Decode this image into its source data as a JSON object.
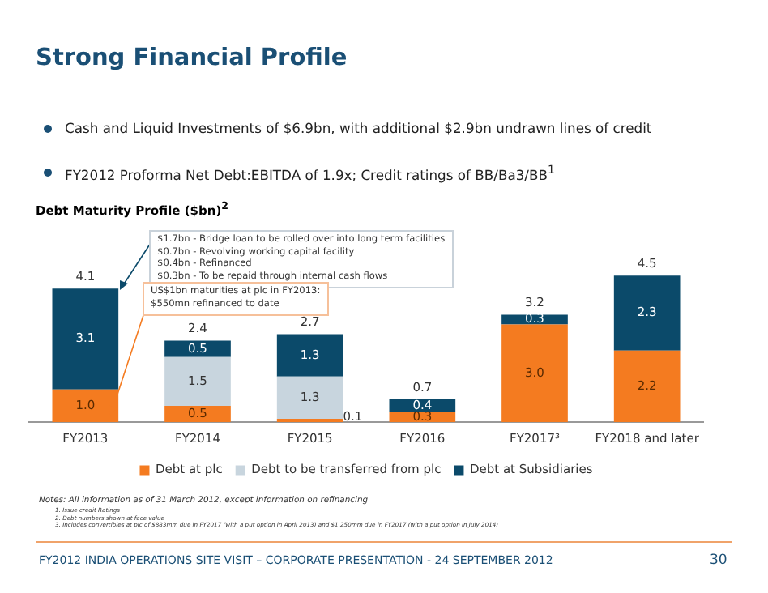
{
  "chart_data": {
    "type": "bar",
    "stacked": true,
    "title": "Strong Financial Profile",
    "subtitle": "Debt Maturity Profile ($bn)$^{2}$",
    "categories": [
      "FY2013",
      "FY2014",
      "FY2015",
      "FY2016",
      "FY2017³",
      "FY2018 and later"
    ],
    "series": [
      {
        "name": "Debt at plc",
        "color": "#f47b20",
        "values": [
          1.0,
          0.5,
          0.1,
          0.3,
          3.0,
          2.2
        ],
        "value_labels": [
          "1.0",
          "0.5",
          "0.1",
          "0.3",
          "3.0",
          "2.2"
        ]
      },
      {
        "name": "Debt to be transferred from plc",
        "color": "#c8d5de",
        "values": [
          0,
          1.5,
          1.3,
          0,
          0,
          0
        ],
        "value_labels": [
          null,
          "1.5",
          "1.3",
          null,
          null,
          null
        ]
      },
      {
        "name": "Debt at Subsidiaries",
        "color": "#0b4a6a",
        "values": [
          3.1,
          0.5,
          1.3,
          0.4,
          0.3,
          2.3
        ],
        "value_labels": [
          "3.1",
          "0.5",
          "1.3",
          "0.4",
          "0.3",
          "2.3"
        ]
      }
    ],
    "totals": [
      "4.1",
      "2.4",
      "2.7",
      "0.7",
      "3.2",
      "4.5"
    ],
    "legend": "bottom",
    "grid": false,
    "tick_labels": "x",
    "annotations": [
      "Cash and Liquid Investments of $6.9bn, with additional $2.9bn undrawn lines of credit",
      "FY2012 Proforma Net Debt:EBITDA of 1.9x; Credit ratings of BB/Ba3/BB$^{1}$",
      "$1.7bn -  Bridge loan to be rolled over into long term facilities\n$0.7bn -  Revolving working capital facility\n$0.4bn -  Refinanced\n$0.3bn -  To be repaid through internal cash flows",
      "US$1bn maturities at plc in FY2013:\n$550mn refinanced to date",
      "Notes: All information as of 31 March 2012, except information on refinancing",
      "1.   Issue credit Ratings\n2.   Debt numbers shown at face value\n3.   Includes convertibles at plc of $883mm due in FY2017 (with a put option in April 2013) and $1,250mm due in FY2017 (with a put option in July 2014)",
      "FY2012 INDIA OPERATIONS SITE VISIT – CORPORATE PRESENTATION - 24 SEPTEMBER 2012",
      "30"
    ]
  }
}
